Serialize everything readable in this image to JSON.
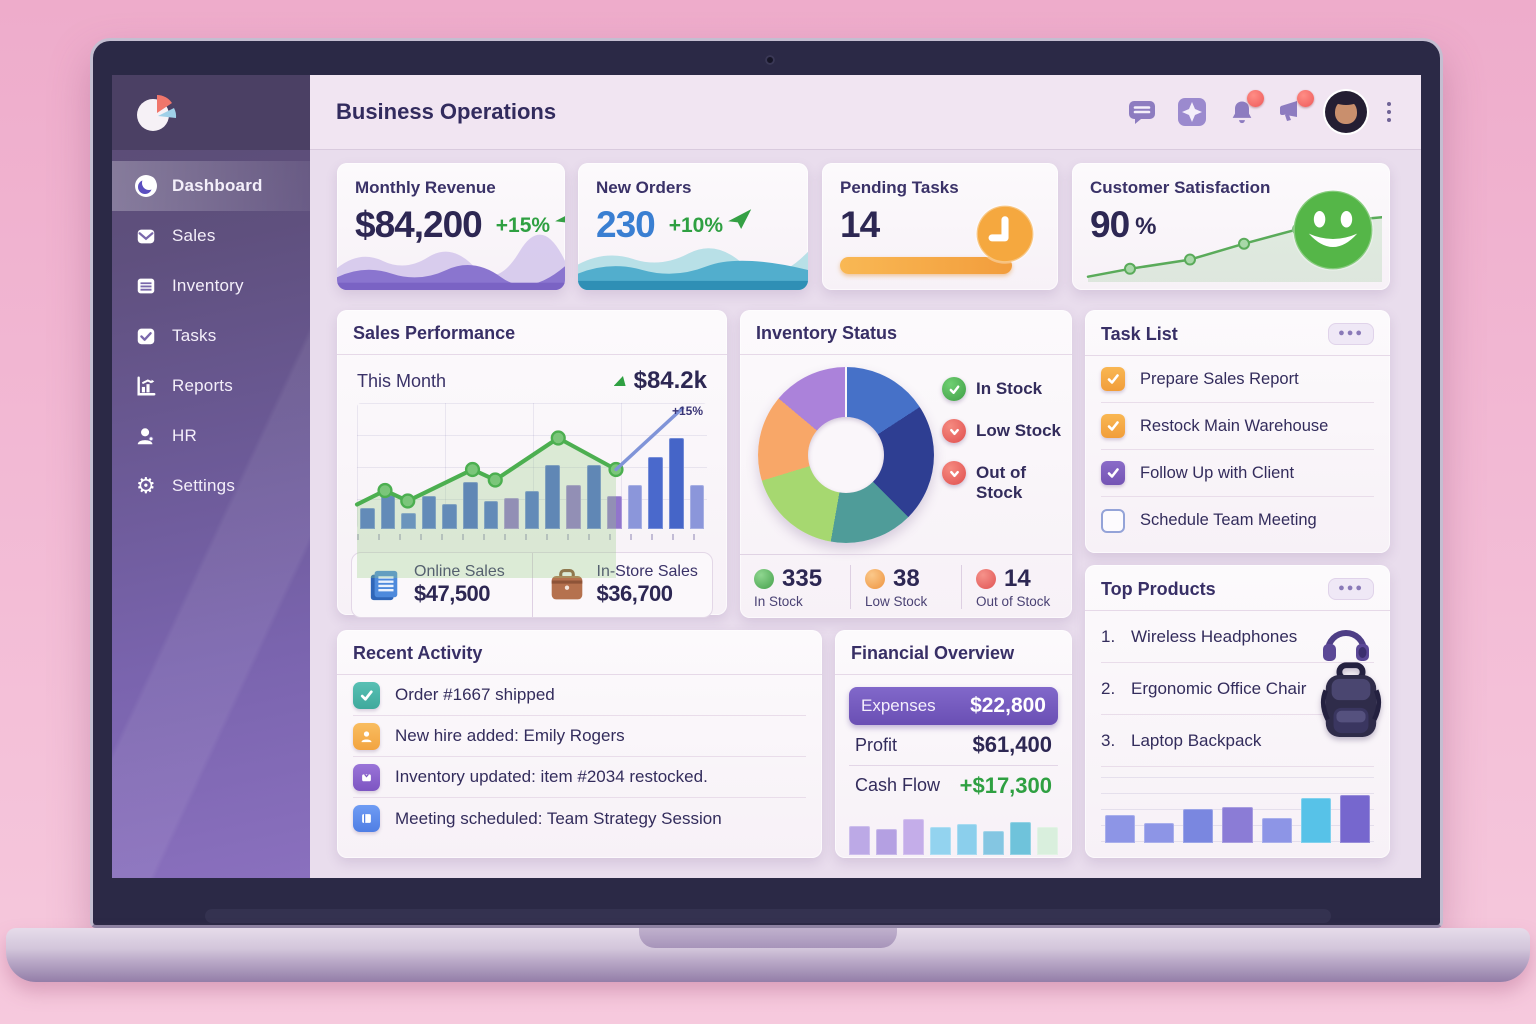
{
  "header": {
    "title": "Business Operations"
  },
  "sidebar": {
    "items": [
      {
        "label": "Dashboard",
        "active": true
      },
      {
        "label": "Sales"
      },
      {
        "label": "Inventory"
      },
      {
        "label": "Tasks"
      },
      {
        "label": "Reports"
      },
      {
        "label": "HR"
      },
      {
        "label": "Settings"
      }
    ]
  },
  "kpis": {
    "revenue": {
      "title": "Monthly Revenue",
      "value": "$84,200",
      "delta": "+15%"
    },
    "orders": {
      "title": "New Orders",
      "value": "230",
      "delta": "+10%"
    },
    "pending": {
      "title": "Pending Tasks",
      "value": "14",
      "progress_pct": 100
    },
    "satisfaction": {
      "title": "Customer Satisfaction",
      "value": "90",
      "unit": "%",
      "spark": {
        "series": [
          {
            "points": [
              [
                2,
                92
              ],
              [
                16,
                80
              ],
              [
                36,
                66
              ],
              [
                54,
                42
              ],
              [
                72,
                20
              ],
              [
                90,
                6
              ],
              [
                100,
                2
              ]
            ],
            "stroke": "#5aab5a",
            "stroke_width": 2.5,
            "fill": "rgba(120,190,120,0.20)",
            "markers": [
              1,
              2,
              3,
              4,
              5
            ],
            "marker_fill": "#a9d8a9",
            "marker_r": 5
          }
        ]
      }
    }
  },
  "sales_performance": {
    "title": "Sales Performance",
    "period_label": "This Month",
    "period_value": "$84.2k",
    "trend_label": "+15%",
    "chart": {
      "type": "bar+line",
      "values": [
        17,
        27,
        13,
        26,
        20,
        37,
        22,
        25,
        30,
        51,
        35,
        51,
        26,
        35,
        57,
        72,
        35
      ],
      "colors": [
        "#4e6fd0",
        "#4e6fd0",
        "#5a7bd6",
        "#4e6fd0",
        "#4e6fd0",
        "#4a69cc",
        "#4e6fd0",
        "#9175cc",
        "#4e6fd0",
        "#4a69cc",
        "#9175cc",
        "#4a69cc",
        "#9175cc",
        "#8b96da",
        "#4a69cc",
        "#4565c8",
        "#8b96da"
      ],
      "lines": {
        "series": [
          {
            "points": [
              [
                0,
                58
              ],
              [
                8,
                50
              ],
              [
                14.5,
                56
              ],
              [
                33,
                38
              ],
              [
                39.5,
                44
              ],
              [
                57.5,
                20
              ],
              [
                74,
                38
              ]
            ],
            "stroke": "#4caf50",
            "stroke_width": 3.5,
            "fill": "rgba(150,205,130,0.30)",
            "markers": [
              1,
              2,
              3,
              4,
              5,
              6
            ],
            "marker_fill": "#7bc67a",
            "marker_r": 5.5
          },
          {
            "points": [
              [
                74,
                38
              ],
              [
                93,
                3
              ]
            ],
            "stroke": "#8094d8",
            "stroke_width": 3
          }
        ]
      }
    },
    "online": {
      "label": "Online Sales",
      "value": "$47,500"
    },
    "instore": {
      "label": "In-Store Sales",
      "value": "$36,700"
    }
  },
  "inventory": {
    "title": "Inventory Status",
    "donut": [
      {
        "color": "#4671c8",
        "deg": 57
      },
      {
        "color": "#2e3e92",
        "deg": 78
      },
      {
        "color": "#4f9c99",
        "deg": 55
      },
      {
        "color": "#a6d870",
        "deg": 63
      },
      {
        "color": "#f8a768",
        "deg": 57
      },
      {
        "color": "#ab82da",
        "deg": 50
      }
    ],
    "legend": [
      {
        "label": "In Stock",
        "color": "#4db153"
      },
      {
        "label": "Low Stock",
        "color": "#ec5f5f"
      },
      {
        "label": "Out of Stock",
        "color": "#ec5f5f"
      }
    ],
    "stats": [
      {
        "value": "335",
        "label": "In Stock",
        "color": "#5cb85c"
      },
      {
        "value": "38",
        "label": "Low Stock",
        "color": "#f5a75c"
      },
      {
        "value": "14",
        "label": "Out of Stock",
        "color": "#ee6e6e"
      }
    ]
  },
  "tasks": {
    "title": "Task List",
    "menu_label": "●●●",
    "items": [
      {
        "label": "Prepare Sales Report",
        "checked": true,
        "check_color": "#f2a23f"
      },
      {
        "label": "Restock Main Warehouse",
        "checked": true,
        "check_color": "#f2a23f"
      },
      {
        "label": "Follow Up with Client",
        "checked": true,
        "check_color": "#7a5bbd"
      },
      {
        "label": "Schedule Team Meeting",
        "checked": false
      }
    ]
  },
  "top_products": {
    "title": "Top Products",
    "menu_label": "●●●",
    "items": [
      {
        "rank": "1.",
        "label": "Wireless Headphones"
      },
      {
        "rank": "2.",
        "label": "Ergonomic Office Chair"
      },
      {
        "rank": "3.",
        "label": "Laptop Backpack"
      }
    ],
    "chart": {
      "type": "bar",
      "values": [
        42,
        30,
        52,
        55,
        38,
        68,
        72
      ],
      "colors": [
        "#8d95e6",
        "#8d95e6",
        "#7a87e0",
        "#8b7cd6",
        "#8d95e6",
        "#57c2e8",
        "#7667ce"
      ]
    }
  },
  "recent_activity": {
    "title": "Recent Activity",
    "items": [
      {
        "text": "Order #1667 shipped",
        "icon_color": "#4db6ac"
      },
      {
        "text": "New hire added: Emily Rogers",
        "icon_color": "#f6b04e"
      },
      {
        "text": "Inventory updated: item #2034 restocked.",
        "icon_color": "#8a63cc"
      },
      {
        "text": "Meeting scheduled: Team Strategy Session",
        "icon_color": "#5d8ef0"
      }
    ]
  },
  "financial": {
    "title": "Financial Overview",
    "expenses": {
      "label": "Expenses",
      "value": "$22,800",
      "highlight_color": "#7258ba"
    },
    "profit": {
      "label": "Profit",
      "value": "$61,400"
    },
    "cashflow": {
      "label": "Cash Flow",
      "value": "+$17,300",
      "positive_color": "#2fa042"
    },
    "chart": {
      "type": "bar",
      "values": [
        60,
        54,
        76,
        58,
        64,
        50,
        68,
        58
      ],
      "colors": [
        "#bca9e6",
        "#b4a0e2",
        "#c4ade9",
        "#93d3ef",
        "#8bcfec",
        "#84c6e2",
        "#6fc3db",
        "#d9efdd"
      ]
    }
  }
}
